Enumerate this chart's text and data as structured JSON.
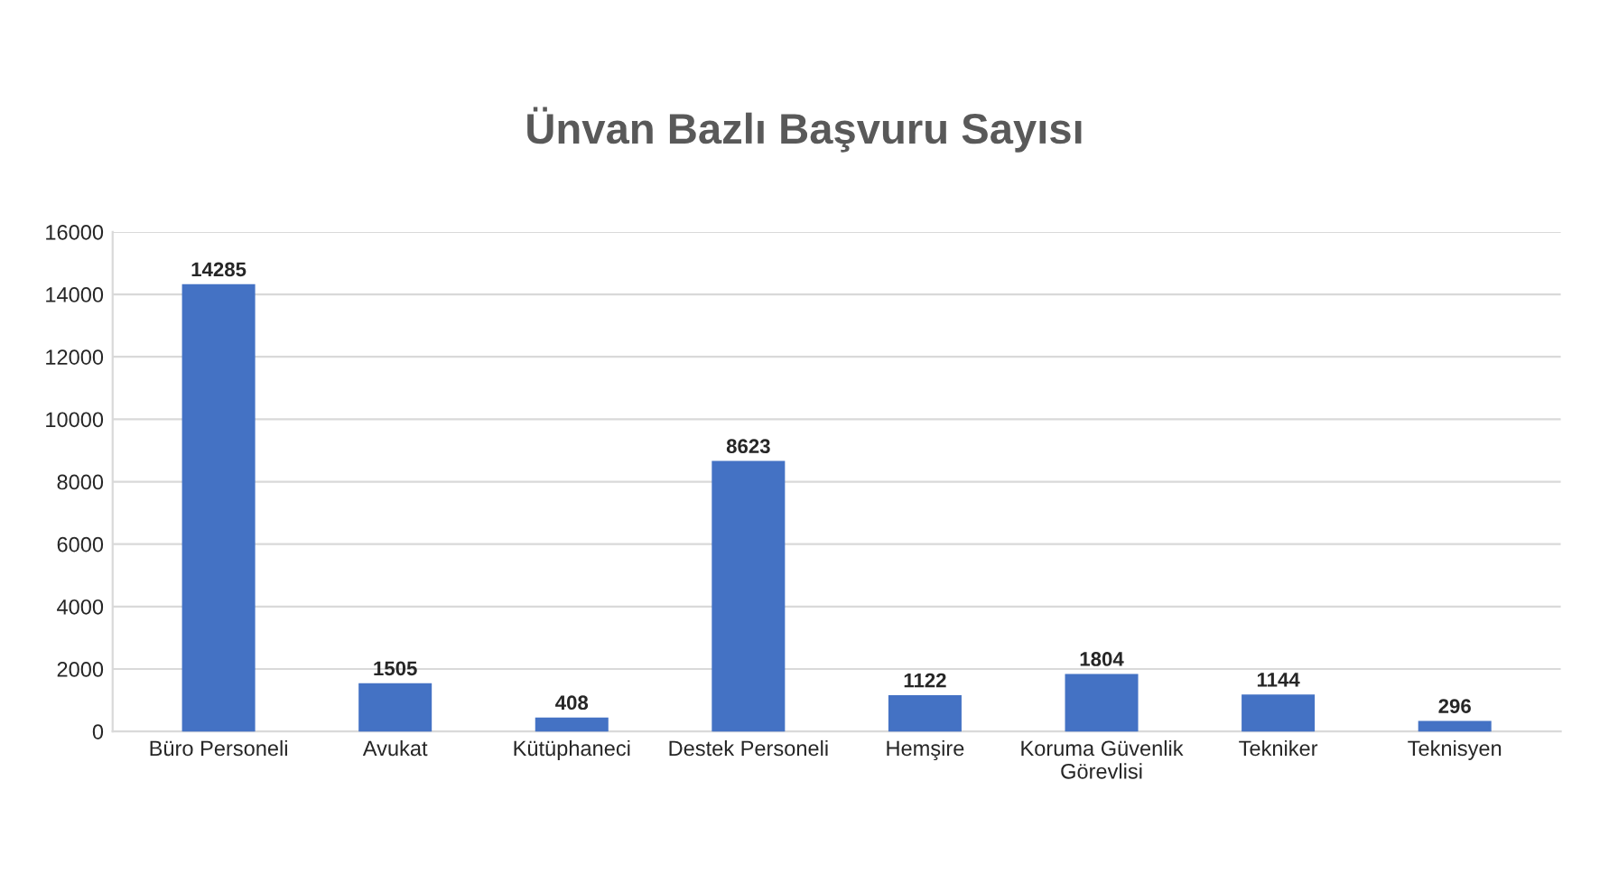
{
  "chart_data": {
    "type": "bar",
    "title": "Ünvan Bazlı Başvuru Sayısı",
    "categories": [
      "Büro Personeli",
      "Avukat",
      "Kütüphaneci",
      "Destek Personeli",
      "Hemşire",
      "Koruma Güvenlik\nGörevlisi",
      "Tekniker",
      "Teknisyen"
    ],
    "values": [
      14285,
      1505,
      408,
      8623,
      1122,
      1804,
      1144,
      296
    ],
    "color": "#4472c4",
    "ylim": [
      0,
      16000
    ],
    "yticks": [
      0,
      2000,
      4000,
      6000,
      8000,
      10000,
      12000,
      14000,
      16000
    ],
    "grid": "y",
    "data_labels": true
  }
}
